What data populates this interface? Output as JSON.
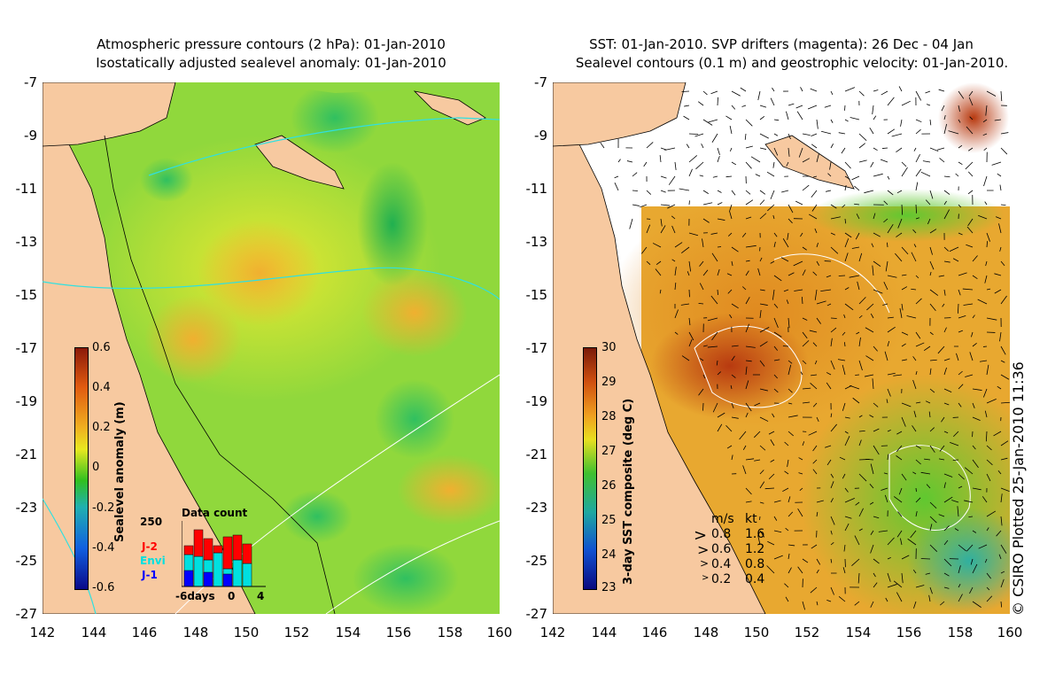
{
  "left_panel": {
    "title_line1": "Atmospheric pressure contours (2 hPa): 01-Jan-2010",
    "title_line2": "Isostatically adjusted sealevel anomaly: 01-Jan-2010",
    "colorbar_label": "Sealevel anomaly (m)",
    "colorbar_ticks": [
      "0.6",
      "0.4",
      "0.2",
      "0",
      "-0.2",
      "-0.4",
      "-0.6"
    ],
    "colorbar_colors": [
      "#8b1a0a",
      "#e05a10",
      "#f0b020",
      "#e8e820",
      "#30c020",
      "#20b0b0",
      "#1060e0",
      "#0a0a8a"
    ],
    "inset": {
      "title": "Data count",
      "ymax_label": "250",
      "series_labels": [
        "J-2",
        "Envi",
        "J-1"
      ],
      "series_colors": [
        "#ff0000",
        "#00e0e0",
        "#0000ff"
      ],
      "x_labels": [
        "-6days",
        "0",
        "4"
      ]
    }
  },
  "right_panel": {
    "title_line1": "SST: 01-Jan-2010. SVP drifters (magenta): 26 Dec - 04 Jan",
    "title_line2": "Sealevel contours (0.1 m) and geostrophic velocity: 01-Jan-2010.",
    "colorbar_label": "3-day SST composite (deg C)",
    "colorbar_ticks": [
      "30",
      "29",
      "28",
      "27",
      "26",
      "25",
      "24",
      "23"
    ],
    "colorbar_colors": [
      "#7a1a08",
      "#d05010",
      "#f0a020",
      "#e8e020",
      "#40c030",
      "#20a8a0",
      "#1050d0",
      "#0a0a80"
    ],
    "speed_legend": {
      "header_ms": "m/s",
      "header_kt": "kt",
      "rows": [
        {
          "ms": "0.8",
          "kt": "1.6"
        },
        {
          "ms": "0.6",
          "kt": "1.2"
        },
        {
          "ms": "0.4",
          "kt": "0.8"
        },
        {
          "ms": "0.2",
          "kt": "0.4"
        }
      ]
    }
  },
  "axes": {
    "y_ticks": [
      "-7",
      "-9",
      "-11",
      "-13",
      "-15",
      "-17",
      "-19",
      "-21",
      "-23",
      "-25",
      "-27"
    ],
    "x_ticks": [
      "142",
      "144",
      "146",
      "148",
      "150",
      "152",
      "154",
      "156",
      "158",
      "160"
    ]
  },
  "credit": "© CSIRO Plotted 25-Jan-2010 11:36",
  "colors": {
    "land": "#f7c9a0",
    "sea_green": "#8ed840",
    "sst_warm": "#e08a20"
  }
}
